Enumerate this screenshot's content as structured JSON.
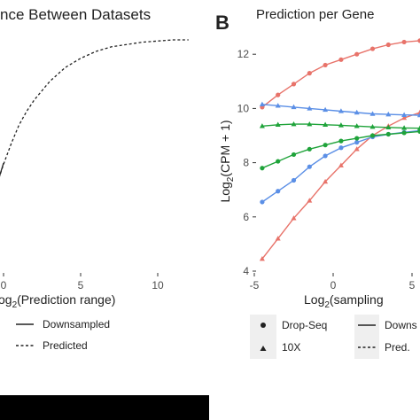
{
  "colors": {
    "red": "#e8736a",
    "blue": "#5b8fe6",
    "green": "#1fa33a",
    "axis": "#333333",
    "legend_bg": "#efefef"
  },
  "panel_a": {
    "title": "nce Between Datasets",
    "xlabel_pre": "og",
    "xlabel_sub": "2",
    "xlabel_post": "(Prediction range)",
    "legend": {
      "downsampled": "Downsampled",
      "predicted": "Predicted"
    }
  },
  "panel_b": {
    "letter": "B",
    "title": "Prediction per Gene",
    "ylabel_pre": "Log",
    "ylabel_sub": "2",
    "ylabel_post": "(CPM + 1)",
    "xlabel_pre": "Log",
    "xlabel_sub": "2",
    "xlabel_post": "(sampling",
    "legend": {
      "dropseq": "Drop-Seq",
      "tenx": "10X",
      "downs": "Downs",
      "pred": "Pred."
    }
  },
  "chart_data": [
    {
      "type": "line",
      "title": "nce Between Datasets",
      "xlabel": "og2(Prediction range)",
      "xticks": [
        "0",
        "5",
        "10"
      ],
      "xlim": [
        -0.3,
        12
      ],
      "ylim": [
        0,
        1
      ],
      "series": [
        {
          "name": "Downsampled",
          "style": "solid",
          "x": [
            -0.3,
            0.0
          ],
          "y": [
            0.4,
            0.465
          ]
        },
        {
          "name": "Predicted",
          "style": "dashed",
          "x": [
            -0.3,
            0.0,
            0.5,
            1.0,
            1.5,
            2.0,
            3.0,
            4.0,
            5.0,
            6.0,
            7.0,
            8.0,
            9.0,
            10.0,
            11.0,
            12.0
          ],
          "y": [
            0.4,
            0.46,
            0.55,
            0.63,
            0.69,
            0.74,
            0.82,
            0.88,
            0.92,
            0.95,
            0.97,
            0.98,
            0.99,
            0.995,
            1.0,
            1.0
          ]
        }
      ]
    },
    {
      "type": "line",
      "title": "Prediction per Gene",
      "xlabel": "Log2(sampling",
      "ylabel": "Log2(CPM + 1)",
      "xlim": [
        -5,
        6.4
      ],
      "ylim": [
        4,
        12.6
      ],
      "xticks": [
        -5,
        0,
        5
      ],
      "yticks": [
        4,
        6,
        8,
        10,
        12
      ],
      "x_observed": [
        -4.5,
        -3.5,
        -2.5,
        -1.5,
        -0.5,
        0.5,
        1.5,
        2.5,
        3.5,
        4.5,
        5.5
      ],
      "series": [
        {
          "name": "red",
          "color": "#e8736a",
          "marker": "circle",
          "observed": [
            10.05,
            10.5,
            10.9,
            11.3,
            11.6,
            11.8,
            12.0,
            12.2,
            12.35,
            12.45,
            12.5
          ],
          "predicted_x": [
            5.5,
            6.4
          ],
          "predicted_y": [
            12.5,
            12.6
          ]
        },
        {
          "name": "red",
          "color": "#e8736a",
          "marker": "triangle",
          "observed": [
            4.45,
            5.2,
            5.95,
            6.6,
            7.3,
            7.9,
            8.5,
            9.0,
            9.35,
            9.65,
            9.85
          ],
          "predicted_x": [
            5.5,
            6.4
          ],
          "predicted_y": [
            9.85,
            10.05
          ]
        },
        {
          "name": "blue",
          "color": "#5b8fe6",
          "marker": "triangle",
          "observed": [
            10.15,
            10.1,
            10.05,
            10.0,
            9.95,
            9.9,
            9.85,
            9.8,
            9.78,
            9.76,
            9.75
          ],
          "predicted_x": [
            5.5,
            6.4
          ],
          "predicted_y": [
            9.75,
            9.72
          ]
        },
        {
          "name": "blue",
          "color": "#5b8fe6",
          "marker": "circle",
          "observed": [
            6.55,
            6.95,
            7.35,
            7.85,
            8.25,
            8.55,
            8.75,
            8.95,
            9.05,
            9.12,
            9.18
          ],
          "predicted_x": [
            5.5,
            6.4
          ],
          "predicted_y": [
            9.18,
            9.25
          ]
        },
        {
          "name": "green",
          "color": "#1fa33a",
          "marker": "triangle",
          "observed": [
            9.35,
            9.4,
            9.42,
            9.42,
            9.4,
            9.38,
            9.35,
            9.32,
            9.3,
            9.28,
            9.27
          ],
          "predicted_x": [
            5.5,
            6.4
          ],
          "predicted_y": [
            9.27,
            9.25
          ]
        },
        {
          "name": "green",
          "color": "#1fa33a",
          "marker": "circle",
          "observed": [
            7.8,
            8.05,
            8.3,
            8.5,
            8.65,
            8.8,
            8.9,
            9.0,
            9.05,
            9.1,
            9.15
          ],
          "predicted_x": [
            5.5,
            6.4
          ],
          "predicted_y": [
            9.15,
            9.2
          ]
        }
      ]
    }
  ]
}
